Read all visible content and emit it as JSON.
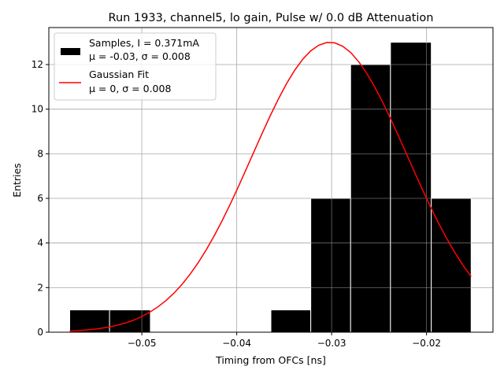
{
  "chart_data": {
    "type": "bar",
    "title": "Run 1933, channel5, lo gain, Pulse w/ 0.0 dB Attenuation",
    "xlabel": "Timing from OFCs [ns]",
    "ylabel": "Entries",
    "xlim": [
      -0.0598,
      -0.013
    ],
    "ylim": [
      0,
      13.66
    ],
    "grid": true,
    "legend_position": "top-left",
    "x_ticks": [
      -0.05,
      -0.04,
      -0.03,
      -0.02
    ],
    "x_tick_labels": [
      "−0.05",
      "−0.04",
      "−0.03",
      "−0.02"
    ],
    "y_ticks": [
      0,
      2,
      4,
      6,
      8,
      10,
      12
    ],
    "y_tick_labels": [
      "0",
      "2",
      "4",
      "6",
      "8",
      "10",
      "12"
    ],
    "histogram": {
      "name": "Samples, I = 0.371mA",
      "stats_label": "μ = -0.03, σ = 0.008",
      "color": "#000000",
      "bin_edges": [
        -0.0576,
        -0.0534,
        -0.0491,
        -0.0449,
        -0.0407,
        -0.0364,
        -0.0322,
        -0.028,
        -0.0238,
        -0.0195,
        -0.0153
      ],
      "counts": [
        1,
        1,
        0,
        0,
        0,
        1,
        6,
        12,
        13,
        6
      ]
    },
    "fit": {
      "name": "Gaussian Fit",
      "stats_label": "μ = 0, σ = 0.008",
      "color": "#ff0000",
      "amplitude": 13,
      "mean": -0.0302,
      "sigma": 0.0082,
      "x_range": [
        -0.0576,
        -0.0153
      ]
    }
  }
}
